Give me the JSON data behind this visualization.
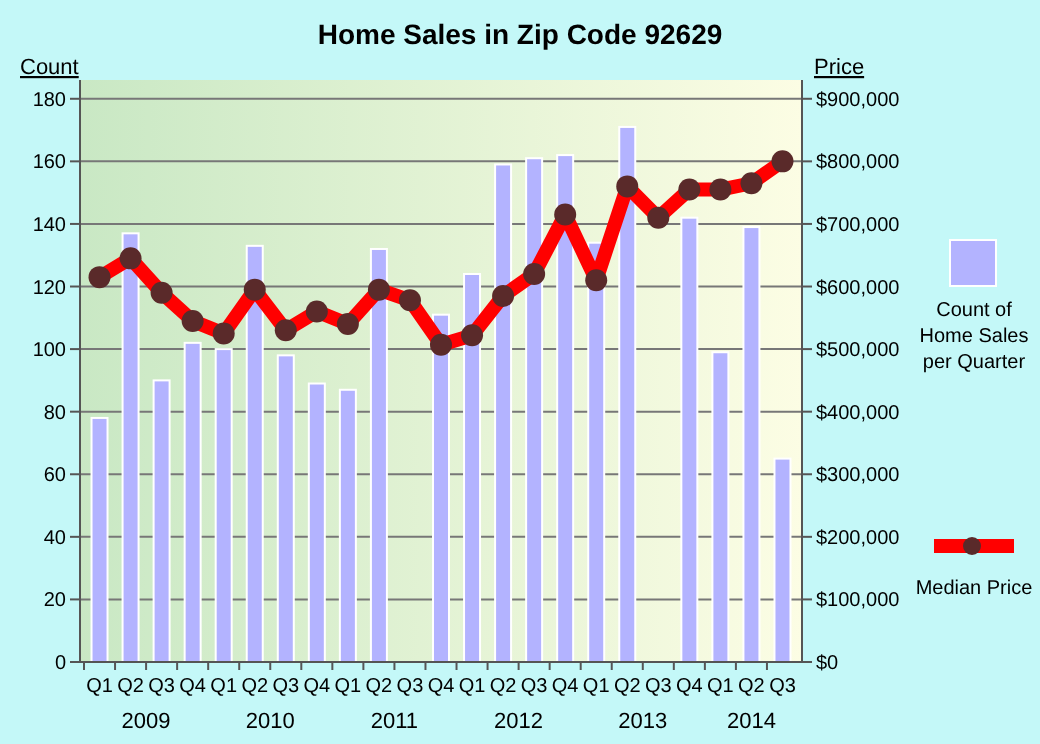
{
  "chart_data": {
    "type": "bar",
    "title": "Home Sales in Zip Code 92629",
    "ylabel": "Count",
    "y2label": "Price",
    "categories": [
      "Q1",
      "Q2",
      "Q3",
      "Q4",
      "Q1",
      "Q2",
      "Q3",
      "Q4",
      "Q1",
      "Q2",
      "Q3",
      "Q4",
      "Q1",
      "Q2",
      "Q3",
      "Q4",
      "Q1",
      "Q2",
      "Q3",
      "Q4",
      "Q1",
      "Q2",
      "Q3"
    ],
    "annotations": [
      "2009",
      "2010",
      "2011",
      "2012",
      "2013",
      "2014"
    ],
    "series": [
      {
        "name": "Count of Home Sales per Quarter",
        "color": "#b3b3ff",
        "values": [
          78,
          137,
          90,
          102,
          100,
          133,
          98,
          89,
          87,
          132,
          null,
          111,
          124,
          159,
          161,
          162,
          134,
          171,
          null,
          142,
          99,
          139,
          65
        ]
      },
      {
        "name": "Median Price",
        "type": "line",
        "axis": "y2",
        "color": "#ff0000",
        "marker": "circle",
        "values": [
          615000,
          645000,
          590000,
          545000,
          525000,
          595000,
          530000,
          560000,
          540000,
          595000,
          578000,
          507000,
          522000,
          585000,
          620000,
          715000,
          610000,
          760000,
          710000,
          755000,
          755000,
          765000,
          800000
        ]
      }
    ],
    "ylim": [
      0,
      186
    ],
    "yticks": [
      0,
      20,
      40,
      60,
      80,
      100,
      120,
      140,
      160,
      180
    ],
    "y2lim": [
      0,
      930000
    ],
    "y2ticks": [
      {
        "value": 0,
        "label": "$0"
      },
      {
        "value": 100000,
        "label": "$100,000"
      },
      {
        "value": 200000,
        "label": "$200,000"
      },
      {
        "value": 300000,
        "label": "$300,000"
      },
      {
        "value": 400000,
        "label": "$400,000"
      },
      {
        "value": 500000,
        "label": "$500,000"
      },
      {
        "value": 600000,
        "label": "$600,000"
      },
      {
        "value": 700000,
        "label": "$700,000"
      },
      {
        "value": 800000,
        "label": "$800,000"
      },
      {
        "value": 900000,
        "label": "$900,000"
      }
    ],
    "grid": "y",
    "legend": "right"
  }
}
